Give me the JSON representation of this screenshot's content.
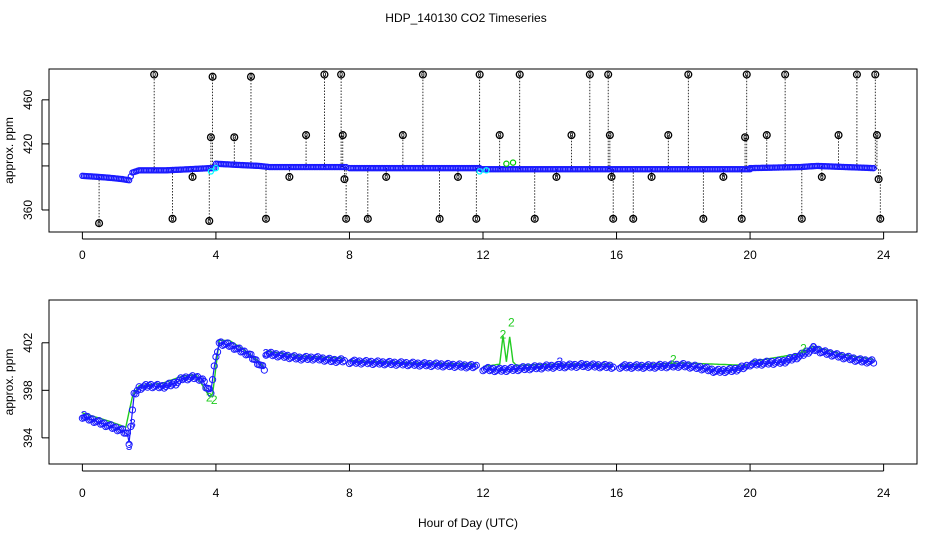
{
  "figure": {
    "title": "HDP_140130  CO2 Timeseries",
    "xlabel": "Hour of Day (UTC)"
  },
  "chart_data": [
    {
      "type": "scatter",
      "panel": "top",
      "ylabel": "approx. ppm",
      "xlim": [
        -1,
        25
      ],
      "ylim": [
        340,
        488
      ],
      "xticks": [
        0,
        4,
        8,
        12,
        16,
        20,
        24
      ],
      "yticks": [
        360,
        400,
        420,
        460
      ],
      "ytick_labels": [
        "360",
        "",
        "420",
        "460"
      ],
      "grid": false,
      "baseline": {
        "color": "#1a1aff",
        "segments": [
          {
            "x": [
              0.0,
              0.5,
              0.9,
              1.2,
              1.4,
              1.5,
              1.7,
              2.5,
              3.2,
              3.8,
              3.95
            ],
            "y": [
              391,
              390,
              389,
              388,
              387,
              394,
              396,
              396,
              397,
              398,
              398
            ]
          },
          {
            "x": [
              4.0,
              4.6,
              5.3,
              5.6,
              7.9
            ],
            "y": [
              402,
              401,
              400,
              399,
              399
            ]
          },
          {
            "x": [
              8.0,
              11.9
            ],
            "y": [
              398,
              398
            ]
          },
          {
            "x": [
              11.95,
              15.95
            ],
            "y": [
              397,
              397
            ]
          },
          {
            "x": [
              16.0,
              20.0
            ],
            "y": [
              397,
              397
            ]
          },
          {
            "x": [
              20.0,
              21.5,
              22.0,
              23.7
            ],
            "y": [
              398,
              399,
              400,
              398
            ]
          }
        ]
      },
      "cyan_points": {
        "color": "#00ffff",
        "x": [
          3.85,
          4.0,
          11.9,
          12.1
        ],
        "y": [
          395,
          398,
          395,
          396
        ]
      },
      "green_points": {
        "color": "#00cc00",
        "x": [
          12.7,
          12.9
        ],
        "y": [
          402,
          403
        ]
      },
      "outliers": {
        "marker_label": "0",
        "x": [
          0.5,
          2.15,
          2.7,
          3.3,
          3.8,
          3.85,
          3.9,
          4.55,
          5.05,
          5.5,
          6.2,
          6.7,
          7.25,
          7.75,
          7.8,
          7.85,
          7.9,
          8.55,
          9.1,
          9.6,
          10.2,
          10.7,
          11.25,
          11.8,
          11.9,
          12.5,
          13.1,
          13.55,
          14.2,
          14.65,
          15.2,
          15.75,
          15.8,
          15.85,
          15.9,
          16.5,
          17.05,
          17.55,
          18.15,
          18.6,
          19.2,
          19.75,
          19.85,
          19.9,
          20.5,
          21.05,
          21.55,
          22.15,
          22.65,
          23.2,
          23.75,
          23.8,
          23.85,
          23.9
        ],
        "y": [
          348,
          483,
          352,
          390,
          350,
          426,
          481,
          426,
          481,
          352,
          390,
          428,
          483,
          483,
          428,
          388,
          352,
          352,
          390,
          428,
          483,
          352,
          390,
          352,
          483,
          428,
          483,
          352,
          390,
          428,
          483,
          483,
          428,
          390,
          352,
          352,
          390,
          428,
          483,
          352,
          390,
          352,
          426,
          483,
          428,
          483,
          352,
          390,
          428,
          483,
          483,
          428,
          388,
          352
        ]
      }
    },
    {
      "type": "scatter",
      "panel": "bottom",
      "ylabel": "approx. ppm",
      "xlim": [
        -1,
        25
      ],
      "ylim": [
        391.8,
        405.6
      ],
      "xticks": [
        0,
        4,
        8,
        12,
        16,
        20,
        24
      ],
      "yticks": [
        394,
        398,
        402
      ],
      "grid": false,
      "series": [
        {
          "name": "3",
          "color": "#1a1aff",
          "marker": "circle",
          "segments": [
            {
              "x": [
                0.0,
                0.4,
                0.8,
                1.2,
                1.35,
                1.4,
                1.45,
                1.55,
                1.7,
                2.0,
                2.4,
                2.8,
                3.0,
                3.4,
                3.6,
                3.7,
                3.85,
                3.95,
                4.1,
                4.4,
                4.7,
                5.0,
                5.3,
                5.45
              ],
              "y": [
                395.8,
                395.4,
                395.0,
                394.6,
                394.3,
                393.6,
                395.0,
                397.6,
                398.2,
                398.4,
                398.3,
                398.6,
                399.0,
                399.1,
                398.9,
                398.3,
                397.9,
                400.0,
                402.0,
                401.8,
                401.4,
                401.0,
                400.2,
                399.8
              ]
            },
            {
              "x": [
                5.5,
                6.0,
                6.5,
                7.0,
                7.5,
                7.85
              ],
              "y": [
                401.1,
                400.9,
                400.7,
                400.7,
                400.5,
                400.5
              ]
            },
            {
              "x": [
                8.0,
                9.0,
                10.0,
                11.0,
                11.8
              ],
              "y": [
                400.4,
                400.3,
                400.2,
                400.1,
                400.0
              ]
            },
            {
              "x": [
                12.0,
                12.5,
                13.0,
                14.0,
                15.0,
                15.9
              ],
              "y": [
                399.8,
                399.7,
                399.8,
                400.0,
                400.1,
                400.0
              ]
            },
            {
              "x": [
                16.1,
                17.0,
                18.0,
                18.5,
                19.0,
                19.5,
                19.9
              ],
              "y": [
                400.0,
                400.0,
                400.1,
                399.9,
                399.6,
                399.7,
                400.0
              ]
            },
            {
              "x": [
                20.0,
                21.0,
                21.5,
                21.9,
                22.2,
                22.8,
                23.3,
                23.7
              ],
              "y": [
                400.2,
                400.4,
                400.9,
                401.5,
                401.2,
                400.8,
                400.5,
                400.4
              ]
            }
          ]
        },
        {
          "name": "2",
          "color": "#22cc22",
          "marker": "line",
          "segments": [
            {
              "x": [
                0.0,
                0.8,
                1.3,
                1.5,
                1.7,
                2.4,
                3.0,
                3.4,
                3.6,
                3.8,
                3.9,
                4.1,
                4.4,
                4.8,
                5.3,
                5.45
              ],
              "y": [
                396.1,
                395.4,
                394.9,
                397.5,
                398.4,
                398.6,
                399.2,
                399.3,
                398.4,
                397.5,
                397.7,
                402.2,
                402.2,
                401.5,
                400.4,
                399.9
              ]
            },
            {
              "x": [
                5.5,
                6.5,
                7.85
              ],
              "y": [
                401.3,
                400.9,
                400.7
              ]
            },
            {
              "x": [
                8.0,
                10.0,
                11.8
              ],
              "y": [
                400.5,
                400.3,
                400.2
              ]
            },
            {
              "x": [
                12.0,
                12.5,
                12.6,
                12.7,
                12.8,
                12.9,
                13.0,
                14.0,
                15.9
              ],
              "y": [
                400.0,
                400.2,
                402.6,
                400.4,
                402.5,
                400.4,
                400.1,
                400.2,
                400.2
              ]
            },
            {
              "x": [
                16.1,
                18.0,
                19.9
              ],
              "y": [
                400.1,
                400.3,
                400.1
              ]
            },
            {
              "x": [
                20.0,
                21.5,
                21.9,
                22.8,
                23.7
              ],
              "y": [
                400.4,
                401.1,
                401.7,
                401.0,
                400.6
              ]
            }
          ]
        }
      ],
      "point_labels": [
        {
          "text": "3",
          "x": 0.05,
          "y": 395.9,
          "color": "#1a1aff"
        },
        {
          "text": "3",
          "x": 1.4,
          "y": 393.3,
          "color": "#1a1aff"
        },
        {
          "text": "3",
          "x": 1.5,
          "y": 395.2,
          "color": "#1a1aff"
        },
        {
          "text": "3",
          "x": 5.5,
          "y": 401.1,
          "color": "#1a1aff"
        },
        {
          "text": "3",
          "x": 14.3,
          "y": 400.4,
          "color": "#1a1aff"
        },
        {
          "text": "3",
          "x": 21.9,
          "y": 401.6,
          "color": "#1a1aff"
        },
        {
          "text": "2",
          "x": 3.8,
          "y": 397.4,
          "color": "#22cc22"
        },
        {
          "text": "2",
          "x": 3.95,
          "y": 397.2,
          "color": "#22cc22"
        },
        {
          "text": "2",
          "x": 12.6,
          "y": 402.7,
          "color": "#22cc22"
        },
        {
          "text": "2",
          "x": 12.85,
          "y": 403.7,
          "color": "#22cc22"
        },
        {
          "text": "2",
          "x": 17.7,
          "y": 400.6,
          "color": "#22cc22"
        },
        {
          "text": "2",
          "x": 21.6,
          "y": 401.5,
          "color": "#22cc22"
        }
      ]
    }
  ]
}
